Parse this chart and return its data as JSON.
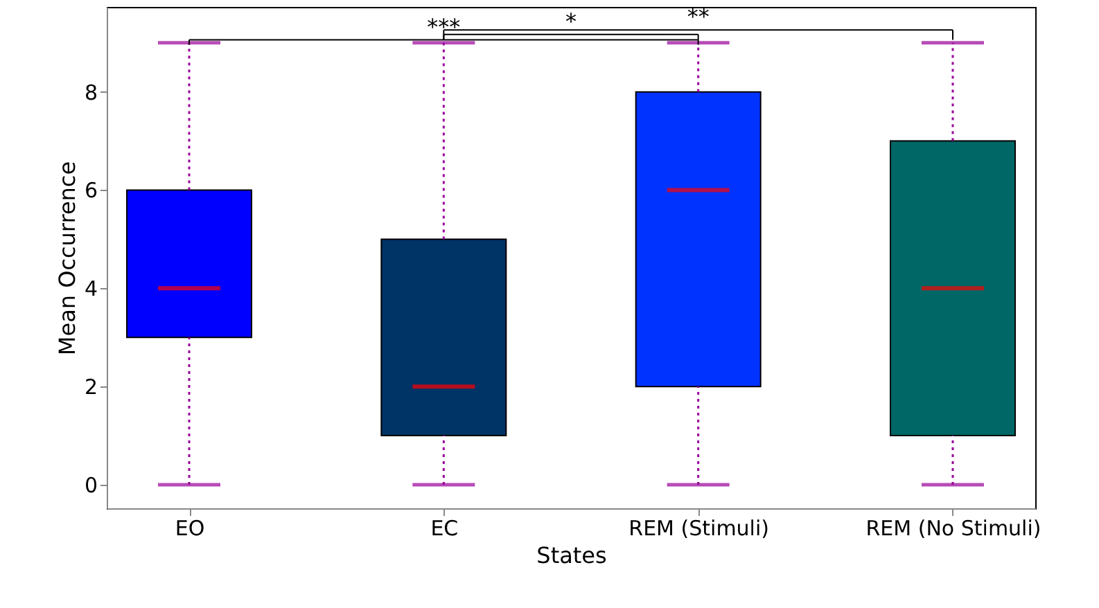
{
  "chart_data": {
    "type": "box",
    "xlabel": "States",
    "ylabel": "Mean Occurrence",
    "categories": [
      "EO",
      "EC",
      "REM (Stimuli)",
      "REM (No Stimuli)"
    ],
    "colors": [
      "#0000ff",
      "#003366",
      "#0033ff",
      "#006666"
    ],
    "boxes": [
      {
        "low": 0,
        "q1": 3,
        "median": 4,
        "q3": 6,
        "high": 9
      },
      {
        "low": 0,
        "q1": 1,
        "median": 2,
        "q3": 5,
        "high": 9
      },
      {
        "low": 0,
        "q1": 2,
        "median": 6,
        "q3": 8,
        "high": 9
      },
      {
        "low": 0,
        "q1": 1,
        "median": 4,
        "q3": 7,
        "high": 9
      }
    ],
    "ylim": [
      -0.48,
      9.73
    ],
    "yticks": [
      0,
      2,
      4,
      6,
      8
    ],
    "grid": false,
    "annotations": [
      "***",
      "*",
      "**"
    ]
  }
}
